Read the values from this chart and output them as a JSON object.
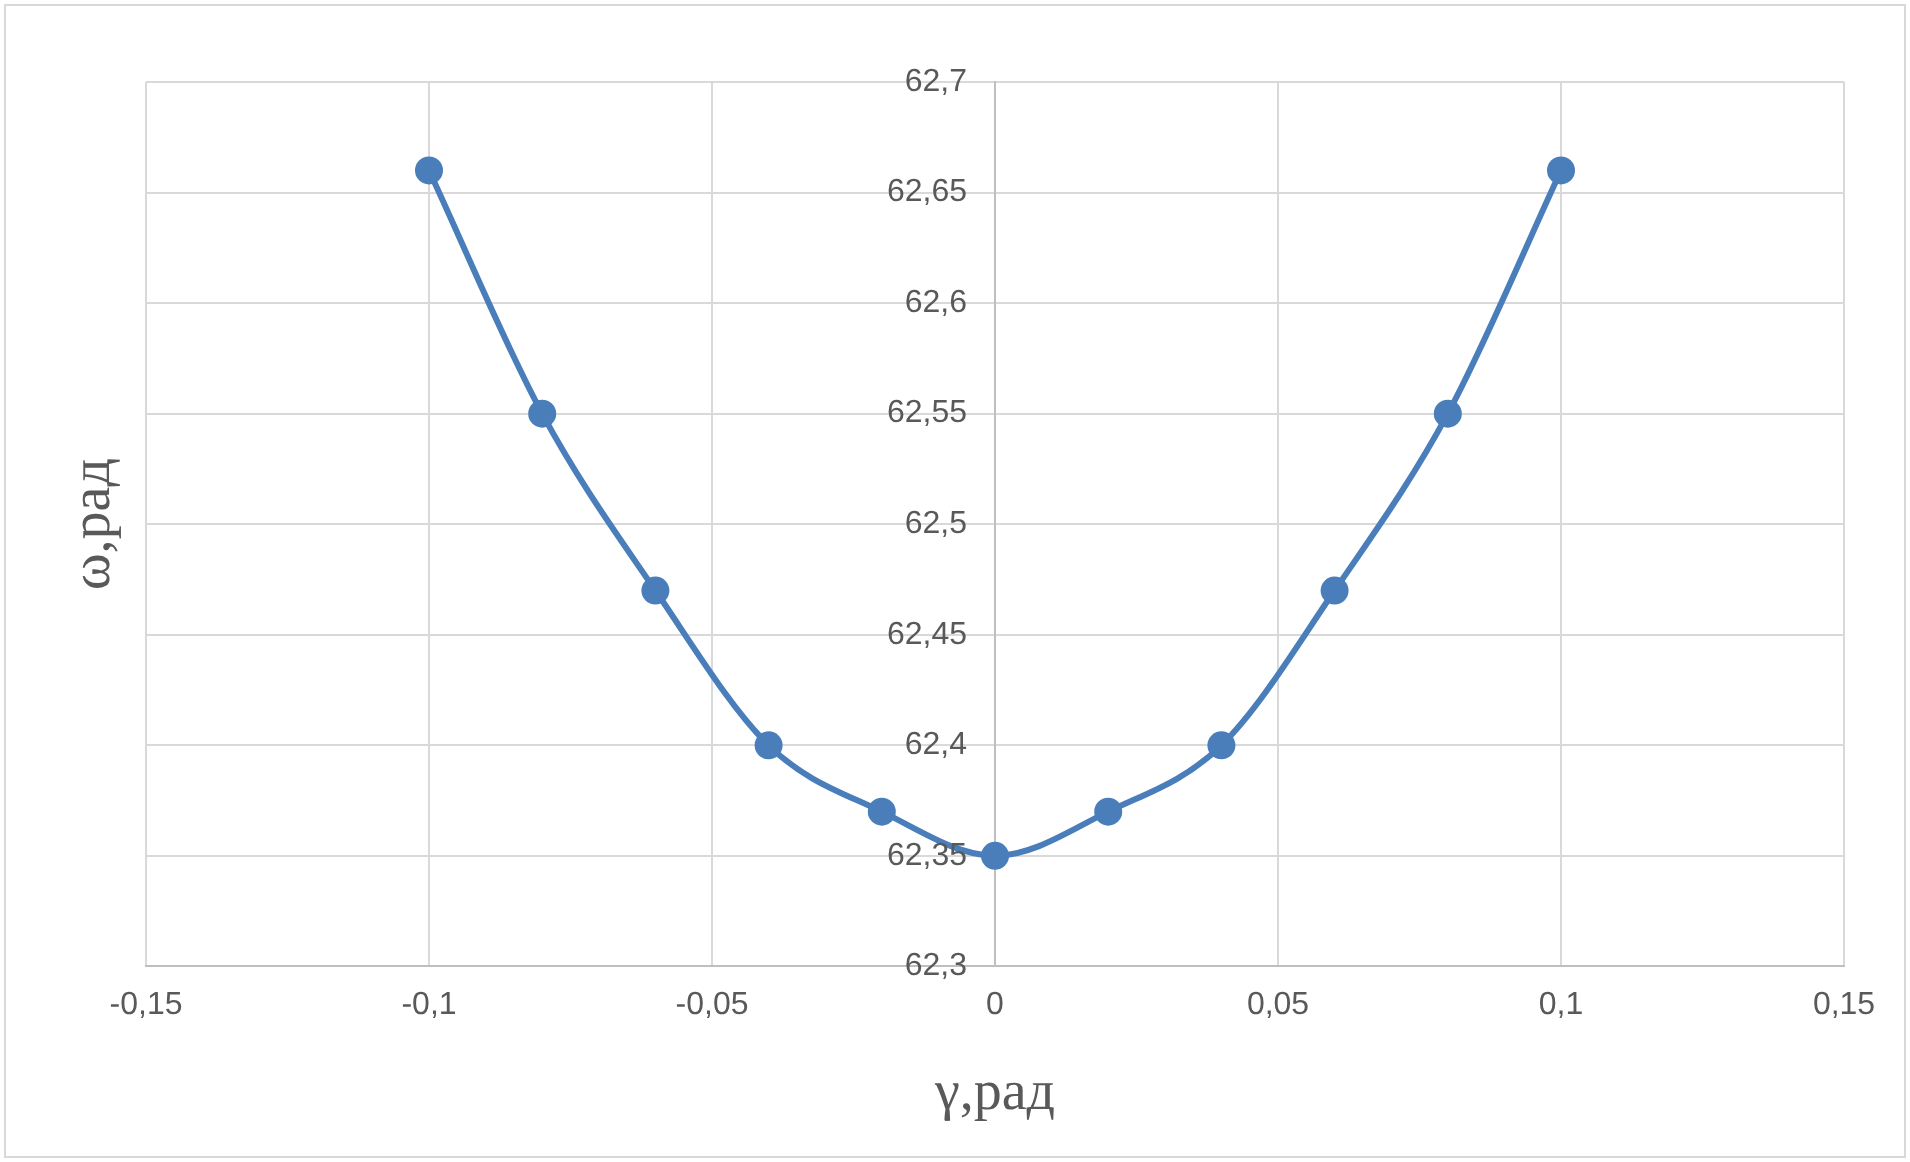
{
  "chart_data": {
    "type": "line",
    "xlabel": "γ,рад",
    "ylabel": "ω,рад",
    "x": [
      -0.1,
      -0.08,
      -0.06,
      -0.04,
      -0.02,
      0,
      0.02,
      0.04,
      0.06,
      0.08,
      0.1
    ],
    "series": [
      {
        "color": "#4a7ebb",
        "values": [
          62.66,
          62.55,
          62.47,
          62.4,
          62.37,
          62.35,
          62.37,
          62.4,
          62.47,
          62.55,
          62.66
        ]
      }
    ],
    "xlim": [
      -0.15,
      0.15
    ],
    "xticks": [
      {
        "value": -0.15,
        "label": "-0,15"
      },
      {
        "value": -0.1,
        "label": "-0,1"
      },
      {
        "value": -0.05,
        "label": "-0,05"
      },
      {
        "value": 0,
        "label": "0"
      },
      {
        "value": 0.05,
        "label": "0,05"
      },
      {
        "value": 0.1,
        "label": "0,1"
      },
      {
        "value": 0.15,
        "label": "0,15"
      }
    ],
    "ylim": [
      62.3,
      62.7
    ],
    "yticks": [
      {
        "value": 62.3,
        "label": "62,3"
      },
      {
        "value": 62.35,
        "label": "62,35"
      },
      {
        "value": 62.4,
        "label": "62,4"
      },
      {
        "value": 62.45,
        "label": "62,45"
      },
      {
        "value": 62.5,
        "label": "62,5"
      },
      {
        "value": 62.55,
        "label": "62,55"
      },
      {
        "value": 62.6,
        "label": "62,6"
      },
      {
        "value": 62.65,
        "label": "62,65"
      },
      {
        "value": 62.7,
        "label": "62,7"
      }
    ],
    "grid": true,
    "legend": false,
    "marker": "circle",
    "line_style": "solid"
  }
}
